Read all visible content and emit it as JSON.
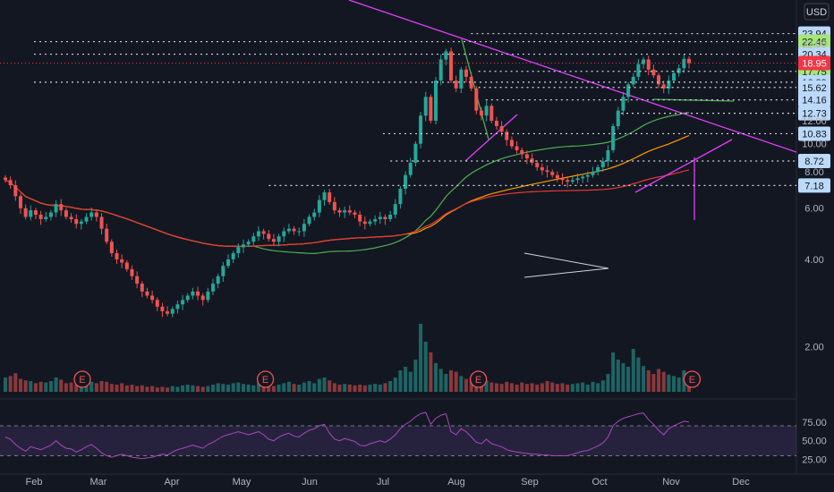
{
  "header": {
    "currency": "USD"
  },
  "chart_data": {
    "type": "candlestick",
    "price_axis": {
      "scale": "log",
      "range": [
        1.4,
        27.5
      ],
      "ticks": [
        2.0,
        4.0,
        6.0,
        8.0,
        10.0,
        12.0,
        22.0
      ],
      "tick_labels": [
        "2.00",
        "4.00",
        "6.00",
        "8.00",
        "10.00",
        "12.00",
        "22.00"
      ]
    },
    "time_axis": {
      "months": [
        "Feb",
        "Mar",
        "Apr",
        "May",
        "Jun",
        "Jul",
        "Aug",
        "Sep",
        "Oct",
        "Nov",
        "Dec"
      ]
    },
    "current_price": {
      "value": 18.95,
      "label": "18.95",
      "color": "#f23645"
    },
    "level_badges": [
      {
        "label": "23.94",
        "value": 23.94,
        "color": "#bbd9fb",
        "x_start_month": 6.2
      },
      {
        "label": "22.46",
        "value": 22.46,
        "color": "#a6e67a",
        "x_start_month": 0.0
      },
      {
        "label": "20.34",
        "value": 20.34,
        "color": "#bbd9fb",
        "x_start_month": 0.0
      },
      {
        "label": "17.75",
        "value": 17.75,
        "color": "#a6e67a",
        "x_start_month": 6.3
      },
      {
        "label": "16.29",
        "value": 16.29,
        "color": "#bbd9fb",
        "x_start_month": 0.0
      },
      {
        "label": "15.62",
        "value": 15.62,
        "color": "#bbd9fb",
        "x_start_month": 6.3
      },
      {
        "label": "14.16",
        "value": 14.16,
        "color": "#bbd9fb",
        "x_start_month": 6.4
      },
      {
        "label": "12.73",
        "value": 12.73,
        "color": "#bbd9fb",
        "x_start_month": 8.3
      },
      {
        "label": "10.83",
        "value": 10.83,
        "color": "#bbd9fb",
        "x_start_month": 5.0
      },
      {
        "label": "8.72",
        "value": 8.72,
        "color": "#bbd9fb",
        "x_start_month": 5.1
      },
      {
        "label": "7.18",
        "value": 7.18,
        "color": "#bbd9fb",
        "x_start_month": 3.4
      }
    ],
    "earnings_markers": {
      "label": "E",
      "months": [
        0.75,
        3.35,
        6.3,
        9.3
      ]
    },
    "close_prices": [
      7.5,
      7.2,
      6.6,
      6.0,
      5.6,
      5.9,
      5.7,
      5.5,
      5.6,
      5.8,
      6.2,
      5.9,
      5.6,
      5.5,
      5.3,
      5.4,
      5.6,
      5.8,
      5.6,
      5.1,
      4.6,
      4.2,
      4.0,
      3.9,
      3.7,
      3.5,
      3.3,
      3.1,
      3.0,
      2.9,
      2.75,
      2.65,
      2.6,
      2.7,
      2.8,
      2.9,
      3.0,
      3.1,
      3.0,
      2.9,
      3.1,
      3.3,
      3.5,
      3.8,
      4.0,
      4.2,
      4.4,
      4.5,
      4.6,
      4.8,
      5.0,
      4.9,
      4.7,
      4.6,
      4.8,
      5.0,
      5.1,
      5.0,
      5.0,
      5.3,
      5.6,
      5.8,
      6.4,
      6.8,
      6.3,
      5.9,
      5.8,
      5.9,
      5.8,
      5.7,
      5.4,
      5.3,
      5.4,
      5.5,
      5.6,
      5.5,
      5.7,
      6.2,
      7.0,
      7.8,
      8.6,
      10.0,
      12.5,
      14.5,
      12.0,
      16.5,
      19.5,
      20.8,
      16.5,
      15.5,
      18.0,
      17.0,
      15.5,
      13.0,
      12.5,
      13.5,
      12.0,
      11.5,
      11.0,
      10.3,
      9.8,
      9.5,
      9.2,
      8.9,
      8.6,
      8.3,
      8.1,
      8.0,
      7.8,
      7.6,
      7.5,
      7.4,
      7.5,
      7.6,
      7.7,
      7.8,
      8.0,
      8.3,
      8.7,
      9.5,
      11.5,
      13.0,
      14.5,
      16.0,
      17.0,
      18.8,
      19.5,
      18.0,
      17.2,
      16.0,
      15.5,
      16.5,
      17.5,
      18.2,
      19.6,
      18.95
    ],
    "volume": [
      0.2,
      0.22,
      0.26,
      0.18,
      0.16,
      0.15,
      0.12,
      0.14,
      0.13,
      0.15,
      0.2,
      0.17,
      0.12,
      0.13,
      0.1,
      0.12,
      0.11,
      0.14,
      0.12,
      0.15,
      0.14,
      0.11,
      0.1,
      0.12,
      0.09,
      0.1,
      0.08,
      0.09,
      0.07,
      0.08,
      0.06,
      0.07,
      0.06,
      0.08,
      0.07,
      0.09,
      0.1,
      0.09,
      0.08,
      0.07,
      0.08,
      0.1,
      0.12,
      0.11,
      0.1,
      0.12,
      0.13,
      0.11,
      0.1,
      0.09,
      0.12,
      0.1,
      0.09,
      0.08,
      0.1,
      0.12,
      0.14,
      0.11,
      0.1,
      0.13,
      0.15,
      0.12,
      0.18,
      0.2,
      0.16,
      0.12,
      0.1,
      0.11,
      0.1,
      0.09,
      0.1,
      0.09,
      0.1,
      0.11,
      0.1,
      0.12,
      0.15,
      0.2,
      0.3,
      0.35,
      0.28,
      0.45,
      0.95,
      0.7,
      0.55,
      0.4,
      0.32,
      0.25,
      0.3,
      0.28,
      0.22,
      0.18,
      0.2,
      0.15,
      0.14,
      0.16,
      0.13,
      0.12,
      0.11,
      0.14,
      0.12,
      0.1,
      0.13,
      0.11,
      0.12,
      0.1,
      0.12,
      0.15,
      0.13,
      0.11,
      0.12,
      0.1,
      0.11,
      0.12,
      0.13,
      0.1,
      0.14,
      0.12,
      0.16,
      0.25,
      0.55,
      0.45,
      0.4,
      0.35,
      0.6,
      0.48,
      0.36,
      0.3,
      0.25,
      0.32,
      0.28,
      0.24,
      0.22,
      0.2,
      0.3,
      0.25
    ],
    "rsi": {
      "upper": 70,
      "lower": 30,
      "ticks": [
        25.0,
        50.0,
        75.0
      ],
      "tick_labels": [
        "25.00",
        "50.00",
        "75.00"
      ],
      "values": [
        55,
        52,
        45,
        40,
        36,
        42,
        40,
        38,
        41,
        44,
        50,
        44,
        40,
        39,
        35,
        38,
        42,
        45,
        40,
        34,
        30,
        28,
        30,
        32,
        30,
        28,
        27,
        26,
        27,
        28,
        30,
        32,
        31,
        35,
        38,
        40,
        42,
        44,
        42,
        40,
        45,
        48,
        52,
        56,
        58,
        60,
        62,
        60,
        58,
        60,
        62,
        58,
        52,
        50,
        55,
        58,
        60,
        56,
        55,
        60,
        64,
        66,
        70,
        72,
        60,
        52,
        50,
        53,
        51,
        49,
        44,
        43,
        46,
        48,
        50,
        48,
        52,
        58,
        66,
        72,
        76,
        82,
        86,
        88,
        72,
        80,
        84,
        86,
        62,
        58,
        66,
        62,
        55,
        48,
        46,
        52,
        46,
        44,
        42,
        38,
        36,
        35,
        34,
        33,
        32,
        32,
        31,
        31,
        30,
        30,
        30,
        30,
        32,
        34,
        36,
        37,
        40,
        43,
        47,
        55,
        70,
        76,
        80,
        82,
        84,
        86,
        87,
        78,
        72,
        64,
        58,
        66,
        70,
        73,
        76,
        75
      ]
    }
  }
}
